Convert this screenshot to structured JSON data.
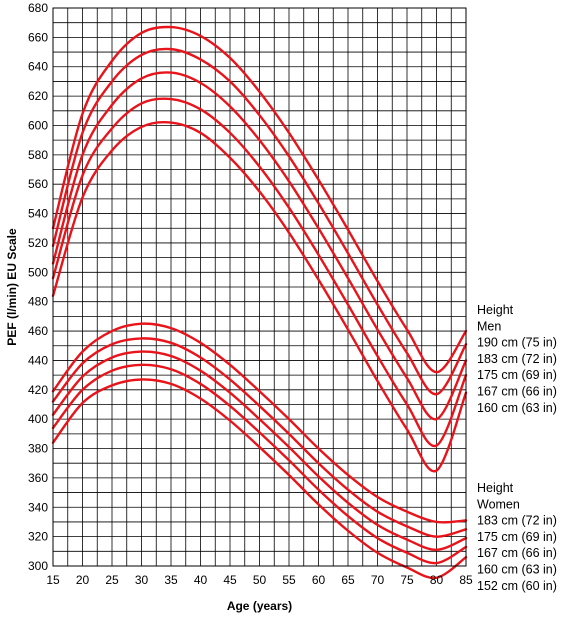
{
  "chart_data": {
    "type": "line",
    "xlabel": "Age (years)",
    "ylabel": "PEF (l/min) EU Scale",
    "xlim": [
      15,
      85
    ],
    "ylim": [
      300,
      680
    ],
    "x_ticks": [
      15,
      20,
      25,
      30,
      35,
      40,
      45,
      50,
      55,
      60,
      65,
      70,
      75,
      80,
      85
    ],
    "y_ticks": [
      300,
      320,
      340,
      360,
      380,
      400,
      420,
      440,
      460,
      480,
      500,
      520,
      540,
      560,
      580,
      600,
      620,
      640,
      660,
      680
    ],
    "grid": true,
    "line_color": "#e8141b",
    "x": [
      15,
      20,
      25,
      30,
      35,
      40,
      45,
      50,
      55,
      60,
      65,
      70,
      75,
      80,
      85
    ],
    "groups": [
      {
        "heading": "Height",
        "group": "Men",
        "series": [
          {
            "name": "190 cm (75 in)",
            "values": [
              530,
              608,
              644,
              663,
              667,
              661,
              646,
              623,
              595,
              563,
              529,
              494,
              461,
              432,
              460
            ]
          },
          {
            "name": "183 cm (72 in)",
            "values": [
              518,
              595,
              630,
              648,
              652,
              645,
              630,
              607,
              579,
              547,
              513,
              478,
              445,
              417,
              451
            ]
          },
          {
            "name": "175 cm (69 in)",
            "values": [
              506,
              580,
              614,
              632,
              636,
              629,
              613,
              590,
              562,
              530,
              496,
              461,
              428,
              400,
              440
            ]
          },
          {
            "name": "167 cm (66 in)",
            "values": [
              496,
              566,
              598,
              615,
              618,
              611,
              595,
              572,
              544,
              512,
              478,
              443,
              410,
              382,
              430
            ]
          },
          {
            "name": "160 cm (63 in)",
            "values": [
              484,
              551,
              583,
              599,
              602,
              595,
              578,
              555,
              527,
              495,
              461,
              426,
              393,
              365,
              418
            ]
          }
        ]
      },
      {
        "heading": "Height",
        "group": "Women",
        "series": [
          {
            "name": "183 cm (72 in)",
            "values": [
              419,
              446,
              460,
              465,
              462,
              452,
              437,
              419,
              400,
              380,
              362,
              347,
              337,
              330,
              331
            ]
          },
          {
            "name": "175 cm (69 in)",
            "values": [
              412,
              438,
              451,
              455,
              452,
              442,
              427,
              409,
              390,
              370,
              352,
              337,
              327,
              320,
              325
            ]
          },
          {
            "name": "167 cm (66 in)",
            "values": [
              403,
              429,
              442,
              446,
              443,
              433,
              418,
              400,
              381,
              361,
              343,
              328,
              318,
              311,
              319
            ]
          },
          {
            "name": "160 cm (63 in)",
            "values": [
              394,
              420,
              433,
              437,
              434,
              424,
              409,
              391,
              372,
              352,
              334,
              319,
              309,
              302,
              313
            ]
          },
          {
            "name": "152 cm (60 in)",
            "values": [
              384,
              411,
              423,
              427,
              424,
              414,
              399,
              381,
              362,
              342,
              324,
              309,
              299,
              292,
              306
            ]
          }
        ]
      }
    ]
  }
}
